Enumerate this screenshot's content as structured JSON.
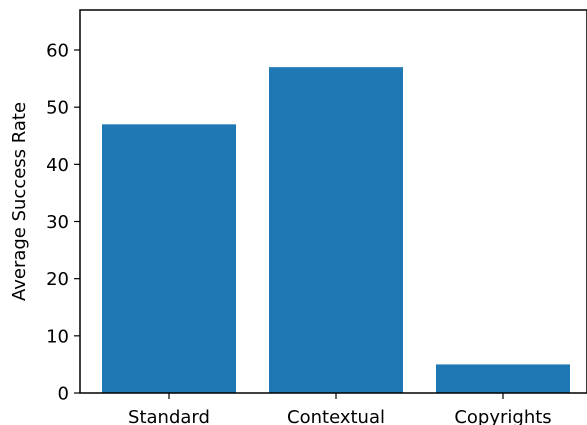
{
  "chart_data": {
    "type": "bar",
    "title": "",
    "xlabel": "",
    "ylabel": "Average Success Rate",
    "categories": [
      "Standard",
      "Contextual",
      "Copyrights"
    ],
    "values": [
      47,
      57,
      5
    ],
    "ylim": [
      0,
      67
    ],
    "yticks": [
      0,
      10,
      20,
      30,
      40,
      50,
      60
    ],
    "grid": false,
    "legend": "none",
    "bar_color": "#1f77b4"
  }
}
